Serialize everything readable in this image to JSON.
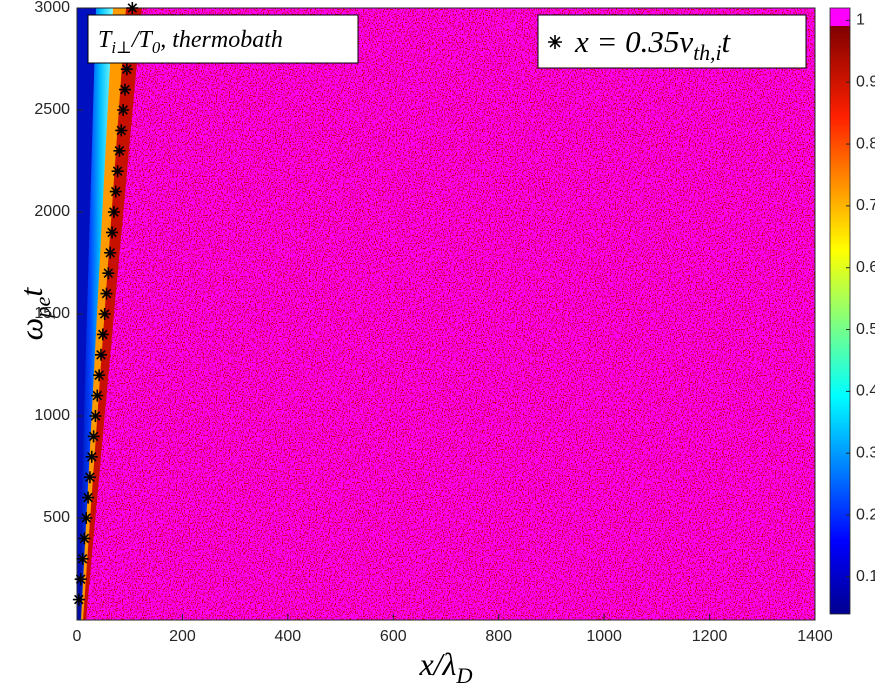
{
  "chart_data": {
    "type": "heatmap",
    "xlabel": [
      "x/λ",
      "D"
    ],
    "ylabel": [
      "ω",
      "pe",
      "t"
    ],
    "annotation": [
      "T",
      "i⊥",
      "/T",
      "0",
      ", thermobath"
    ],
    "xlim": [
      0,
      1400
    ],
    "ylim": [
      0,
      3000
    ],
    "xticks": [
      0,
      200,
      400,
      600,
      800,
      1000,
      1200,
      1400
    ],
    "yticks": [
      500,
      1000,
      1500,
      2000,
      2500,
      3000
    ],
    "colorbar": {
      "lim": [
        0.04,
        1.02
      ],
      "ticks": [
        0.1,
        0.2,
        0.3,
        0.4,
        0.5,
        0.6,
        0.7,
        0.8,
        0.9,
        1
      ]
    },
    "series": [
      {
        "name": [
          "x = 0.35v",
          "th,i",
          "t"
        ],
        "marker": "*",
        "color": "#000000",
        "x": [
          3.5,
          7,
          10.5,
          14,
          17.5,
          21,
          24.5,
          28,
          31.5,
          35,
          38.5,
          42,
          45.5,
          49,
          52.5,
          56,
          59.5,
          63,
          66.5,
          70,
          73.5,
          77,
          80.5,
          84,
          87.5,
          91,
          94.5,
          98,
          101.5,
          105
        ],
        "y": [
          100,
          200,
          300,
          400,
          500,
          600,
          700,
          800,
          900,
          1000,
          1100,
          1200,
          1300,
          1400,
          1500,
          1600,
          1700,
          1800,
          1900,
          2000,
          2100,
          2200,
          2300,
          2400,
          2500,
          2600,
          2700,
          2800,
          2900,
          3000
        ]
      }
    ]
  }
}
